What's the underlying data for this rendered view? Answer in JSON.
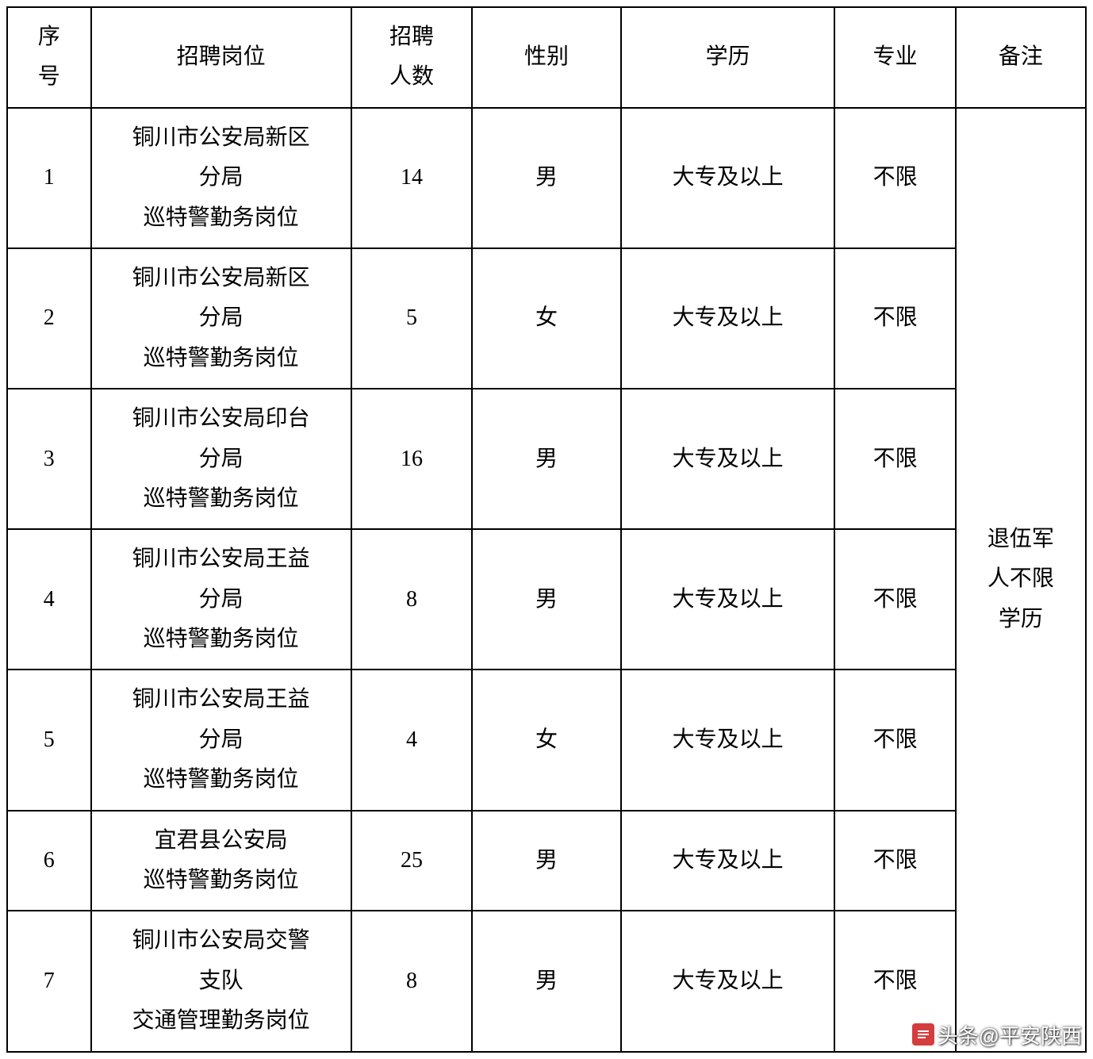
{
  "table": {
    "columns": [
      {
        "label": "序号",
        "class": "col-index",
        "lines": [
          "序",
          "号"
        ]
      },
      {
        "label": "招聘岗位",
        "class": "col-position",
        "lines": [
          "招聘岗位"
        ]
      },
      {
        "label": "招聘人数",
        "class": "col-count",
        "lines": [
          "招聘",
          "人数"
        ]
      },
      {
        "label": "性别",
        "class": "col-gender",
        "lines": [
          "性别"
        ]
      },
      {
        "label": "学历",
        "class": "col-education",
        "lines": [
          "学历"
        ]
      },
      {
        "label": "专业",
        "class": "col-major",
        "lines": [
          "专业"
        ]
      },
      {
        "label": "备注",
        "class": "col-note",
        "lines": [
          "备注"
        ]
      }
    ],
    "rows": [
      {
        "index": "1",
        "position_lines": [
          "铜川市公安局新区",
          "分局",
          "巡特警勤务岗位"
        ],
        "count": "14",
        "gender": "男",
        "education": "大专及以上",
        "major": "不限"
      },
      {
        "index": "2",
        "position_lines": [
          "铜川市公安局新区",
          "分局",
          "巡特警勤务岗位"
        ],
        "count": "5",
        "gender": "女",
        "education": "大专及以上",
        "major": "不限"
      },
      {
        "index": "3",
        "position_lines": [
          "铜川市公安局印台",
          "分局",
          "巡特警勤务岗位"
        ],
        "count": "16",
        "gender": "男",
        "education": "大专及以上",
        "major": "不限"
      },
      {
        "index": "4",
        "position_lines": [
          "铜川市公安局王益",
          "分局",
          "巡特警勤务岗位"
        ],
        "count": "8",
        "gender": "男",
        "education": "大专及以上",
        "major": "不限"
      },
      {
        "index": "5",
        "position_lines": [
          "铜川市公安局王益",
          "分局",
          "巡特警勤务岗位"
        ],
        "count": "4",
        "gender": "女",
        "education": "大专及以上",
        "major": "不限"
      },
      {
        "index": "6",
        "position_lines": [
          "宜君县公安局",
          "巡特警勤务岗位"
        ],
        "count": "25",
        "gender": "男",
        "education": "大专及以上",
        "major": "不限"
      },
      {
        "index": "7",
        "position_lines": [
          "铜川市公安局交警",
          "支队",
          "交通管理勤务岗位"
        ],
        "count": "8",
        "gender": "男",
        "education": "大专及以上",
        "major": "不限"
      }
    ],
    "note_lines": [
      "退伍军",
      "人不限",
      "学历"
    ],
    "border_color": "#000000",
    "background_color": "#ffffff",
    "font_size": 28,
    "text_color": "#000000"
  },
  "watermark": {
    "text": "头条@平安陕西",
    "icon_color": "#d43d3d"
  }
}
